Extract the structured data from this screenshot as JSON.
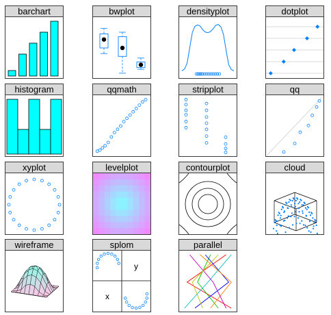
{
  "colors": {
    "strip_bg": "#d9d9d9",
    "bar_fill": "#00ffff",
    "point": "#0080ff",
    "line": "#0080ff",
    "black": "#000000"
  },
  "chart_data": [
    {
      "panel": "barchart",
      "title": "barchart",
      "type": "bar",
      "values": [
        1,
        4,
        6,
        8,
        10
      ]
    },
    {
      "panel": "bwplot",
      "title": "bwplot",
      "type": "box",
      "boxes": [
        {
          "x": 1,
          "whisker_low": 4.0,
          "q1": 5.0,
          "median": 6.5,
          "q3": 7.5,
          "whisker_high": 8.5
        },
        {
          "x": 2,
          "whisker_low": 0.5,
          "q1": 3.5,
          "median": 5.0,
          "q3": 7.0,
          "whisker_high": 7.8
        },
        {
          "x": 3,
          "whisker_low": 1.2,
          "q1": 1.5,
          "median": 2.0,
          "q3": 2.5,
          "whisker_high": 3.2
        }
      ],
      "ylim": [
        0,
        10
      ]
    },
    {
      "panel": "densityplot",
      "title": "densityplot",
      "type": "line",
      "x": [
        0,
        0.05,
        0.1,
        0.15,
        0.2,
        0.25,
        0.3,
        0.35,
        0.4,
        0.45,
        0.5,
        0.55,
        0.6,
        0.65,
        0.7,
        0.75,
        0.8,
        0.85,
        0.9,
        0.95,
        1
      ],
      "y": [
        0.02,
        0.06,
        0.18,
        0.5,
        0.82,
        0.95,
        0.98,
        0.96,
        0.88,
        0.83,
        0.82,
        0.84,
        0.9,
        0.97,
        0.99,
        0.94,
        0.78,
        0.45,
        0.15,
        0.05,
        0.02
      ],
      "rug": [
        0.28,
        0.31,
        0.34,
        0.37,
        0.4,
        0.44,
        0.48,
        0.52,
        0.56,
        0.6,
        0.64,
        0.68,
        0.72
      ]
    },
    {
      "panel": "dotplot",
      "title": "dotplot",
      "type": "scatter",
      "values": [
        0.5,
        3.0,
        5.0,
        7.5,
        9.5
      ],
      "xlim": [
        0,
        10
      ]
    },
    {
      "panel": "histogram",
      "title": "histogram",
      "type": "bar",
      "values": [
        10,
        4.5,
        10,
        4.5,
        10
      ]
    },
    {
      "panel": "qqmath",
      "title": "qqmath",
      "type": "scatter",
      "x": [
        0.03,
        0.08,
        0.13,
        0.18,
        0.24,
        0.3,
        0.36,
        0.42,
        0.48,
        0.54,
        0.6,
        0.66,
        0.72,
        0.78,
        0.84,
        0.9,
        0.96
      ],
      "y": [
        0.04,
        0.06,
        0.1,
        0.14,
        0.2,
        0.3,
        0.38,
        0.44,
        0.5,
        0.58,
        0.64,
        0.7,
        0.76,
        0.82,
        0.88,
        0.94,
        0.98
      ]
    },
    {
      "panel": "stripplot",
      "title": "stripplot",
      "type": "scatter",
      "groups": [
        [
          0.97,
          0.88,
          0.78,
          0.7,
          0.58,
          0.47
        ],
        [
          0.9,
          0.78,
          0.66,
          0.55,
          0.44,
          0.32,
          0.2
        ],
        [
          0.3,
          0.18,
          0.1,
          0.03
        ]
      ]
    },
    {
      "panel": "qq",
      "title": "qq",
      "type": "scatter",
      "x": [
        0.3,
        0.5,
        0.6,
        0.75,
        0.82,
        0.9,
        0.95
      ],
      "y": [
        0.05,
        0.2,
        0.4,
        0.52,
        0.7,
        0.85,
        0.96
      ]
    },
    {
      "panel": "xyplot",
      "title": "xyplot",
      "type": "scatter",
      "shape": "circle",
      "n": 20
    },
    {
      "panel": "levelplot",
      "title": "levelplot",
      "type": "heatmap",
      "size": 10
    },
    {
      "panel": "contourplot",
      "title": "contourplot",
      "type": "contour",
      "levels": [
        0.2,
        0.45,
        0.7
      ]
    },
    {
      "panel": "cloud",
      "title": "cloud",
      "type": "scatter3d"
    },
    {
      "panel": "wireframe",
      "title": "wireframe",
      "type": "surface"
    },
    {
      "panel": "splom",
      "title": "splom",
      "type": "scatter-matrix",
      "labels": [
        "y",
        "x"
      ]
    },
    {
      "panel": "parallel",
      "title": "parallel",
      "type": "parallel",
      "series": [
        {
          "color": "#ff0000",
          "values": [
            0.95,
            0.1,
            0.85
          ]
        },
        {
          "color": "#00c000",
          "values": [
            0.7,
            0.3,
            0.55
          ]
        },
        {
          "color": "#0000ff",
          "values": [
            0.25,
            0.9,
            0.45
          ]
        },
        {
          "color": "#ff8000",
          "values": [
            0.55,
            0.95,
            0.35
          ]
        },
        {
          "color": "#00c0c0",
          "values": [
            0.05,
            0.5,
            0.95
          ]
        },
        {
          "color": "#c000c0",
          "values": [
            0.85,
            0.6,
            0.15
          ]
        },
        {
          "color": "#c0c000",
          "values": [
            0.4,
            0.2,
            0.7
          ]
        }
      ]
    }
  ]
}
